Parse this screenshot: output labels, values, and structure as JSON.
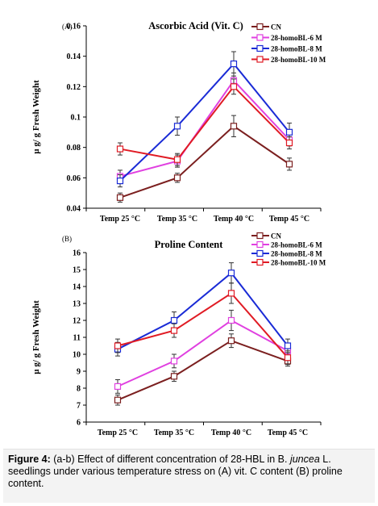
{
  "charts_meta": {
    "colors": [
      "#7b1f1f",
      "#e040e0",
      "#1a2bd6",
      "#e01b24"
    ],
    "marker": "square"
  },
  "chart_data": [
    {
      "type": "line",
      "panel_label": "(A)",
      "title": "Ascorbic Acid (Vit. C)",
      "xlabel": "",
      "ylabel": "µ g/ g Fresh Weight",
      "categories": [
        "Temp 25 °C",
        "Temp 35 °C",
        "Temp 40 °C",
        "Temp 45 °C"
      ],
      "ylim": [
        0.04,
        0.16
      ],
      "yticks": [
        0.04,
        0.06,
        0.08,
        0.1,
        0.12,
        0.14,
        0.16
      ],
      "ytick_labels": [
        "0.04",
        "0.06",
        "0.08",
        "0.1",
        "0.12",
        "0.14",
        "0.16"
      ],
      "legend_position": "top-right",
      "grid": false,
      "series": [
        {
          "name": "CN",
          "values": [
            0.047,
            0.06,
            0.094,
            0.069
          ],
          "errors": [
            0.003,
            0.003,
            0.007,
            0.004
          ]
        },
        {
          "name": "28-homoBL-6 M",
          "values": [
            0.061,
            0.071,
            0.124,
            0.085
          ],
          "errors": [
            0.004,
            0.004,
            0.005,
            0.004
          ]
        },
        {
          "name": "28-homoBL-8 M",
          "values": [
            0.058,
            0.094,
            0.135,
            0.09
          ],
          "errors": [
            0.004,
            0.006,
            0.008,
            0.006
          ]
        },
        {
          "name": "28-homoBL-10 M",
          "values": [
            0.079,
            0.072,
            0.12,
            0.083
          ],
          "errors": [
            0.004,
            0.004,
            0.005,
            0.004
          ]
        }
      ]
    },
    {
      "type": "line",
      "panel_label": "(B)",
      "title": "Proline Content",
      "xlabel": "",
      "ylabel": "µ g/ g Fresh Weight",
      "categories": [
        "Temp 25 °C",
        "Temp 35 °C",
        "Temp 40 °C",
        "Temp 45 °C"
      ],
      "ylim": [
        6,
        16
      ],
      "yticks": [
        6,
        7,
        8,
        9,
        10,
        11,
        12,
        13,
        14,
        15,
        16
      ],
      "ytick_labels": [
        "6",
        "7",
        "8",
        "9",
        "10",
        "11",
        "12",
        "13",
        "14",
        "15",
        "16"
      ],
      "legend_position": "top-right",
      "grid": false,
      "series": [
        {
          "name": "CN",
          "values": [
            7.3,
            8.7,
            10.8,
            9.6
          ],
          "errors": [
            0.3,
            0.3,
            0.4,
            0.3
          ]
        },
        {
          "name": "28-homoBL-6 M",
          "values": [
            8.1,
            9.6,
            12.0,
            10.2
          ],
          "errors": [
            0.4,
            0.4,
            0.6,
            0.4
          ]
        },
        {
          "name": "28-homoBL-8 M",
          "values": [
            10.3,
            12.0,
            14.8,
            10.5
          ],
          "errors": [
            0.4,
            0.5,
            0.6,
            0.4
          ]
        },
        {
          "name": "28-homoBL-10 M",
          "values": [
            10.5,
            11.4,
            13.6,
            9.8
          ],
          "errors": [
            0.4,
            0.4,
            0.6,
            0.4
          ]
        }
      ]
    }
  ],
  "caption": {
    "label": "Figure 4:",
    "text_1": " (a-b) Effect of different concentration of 28-HBL in B. ",
    "text_italic": "juncea",
    "text_2": " L. seedlings under various temperature stress on (A) vit. C content (B) proline content."
  }
}
